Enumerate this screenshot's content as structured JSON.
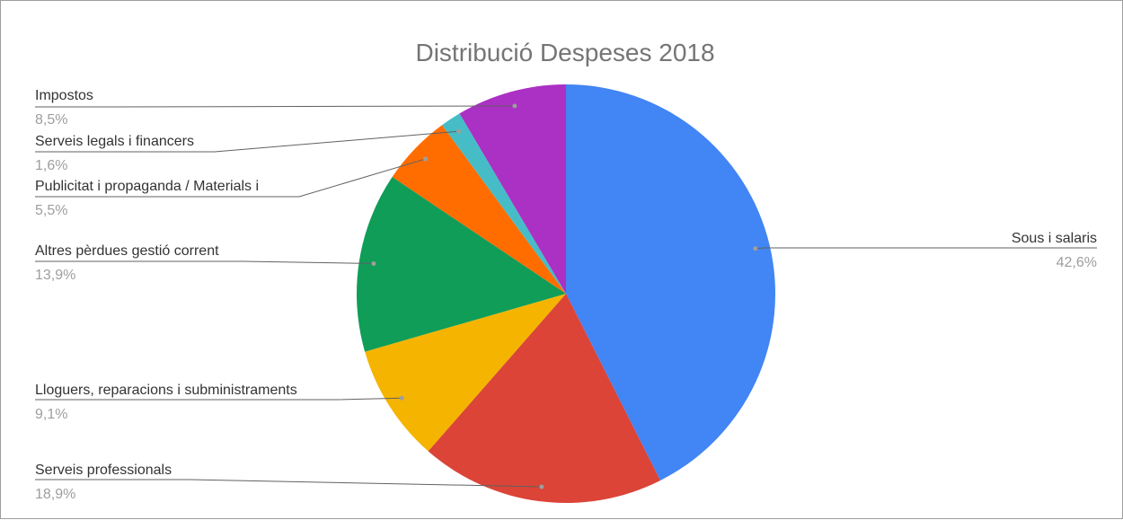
{
  "chart_data": {
    "type": "pie",
    "title": "Distribució Despeses 2018",
    "slices": [
      {
        "name": "Sous i salaris",
        "value": 42.6,
        "label": "42,6%",
        "color": "#4285F4"
      },
      {
        "name": "Serveis professionals",
        "value": 18.9,
        "label": "18,9%",
        "color": "#DB4437"
      },
      {
        "name": "Lloguers, reparacions i subministraments",
        "value": 9.1,
        "label": "9,1%",
        "color": "#F4B400"
      },
      {
        "name": "Altres pèrdues gestió corrent",
        "value": 13.9,
        "label": "13,9%",
        "color": "#0F9D58"
      },
      {
        "name": "Publicitat i propaganda / Materials i",
        "value": 5.5,
        "label": "5,5%",
        "color": "#FF6D01"
      },
      {
        "name": "Serveis legals i financers",
        "value": 1.6,
        "label": "1,6%",
        "color": "#46BDC6"
      },
      {
        "name": "Impostos",
        "value": 8.5,
        "label": "8,5%",
        "color": "#AB30C4"
      }
    ]
  }
}
